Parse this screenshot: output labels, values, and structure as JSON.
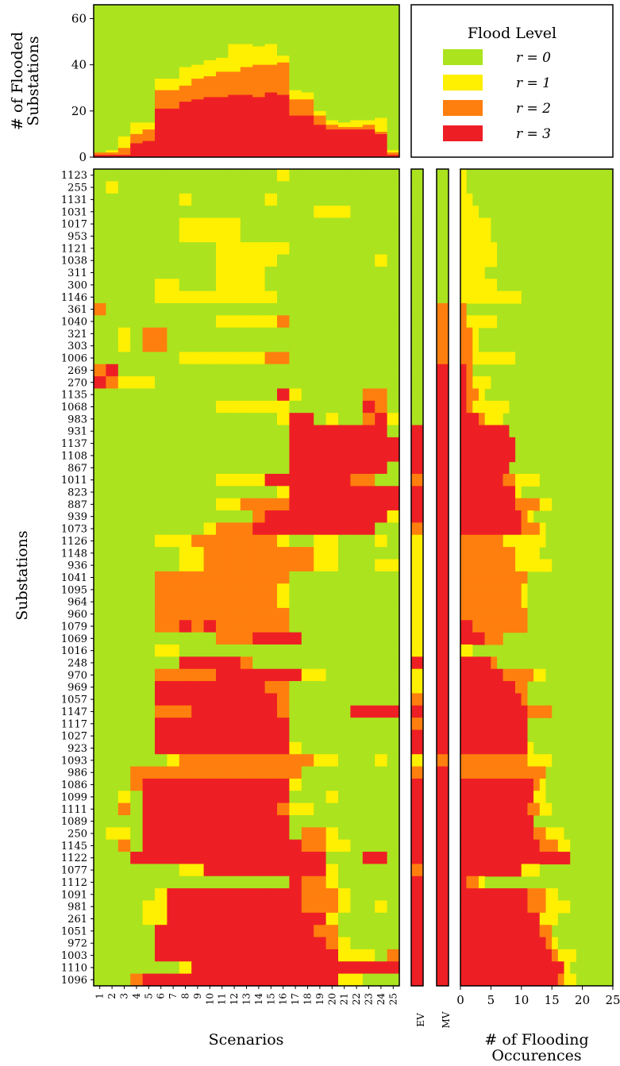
{
  "colors": {
    "r0": "#abe31f",
    "r1": "#ffef00",
    "r2": "#ff7f0e",
    "r3": "#ee1f24",
    "axis": "#000000",
    "bg": "#ffffff"
  },
  "chart_data": {
    "type": "heatmap",
    "title": "",
    "legend": {
      "title": "Flood Level",
      "entries": [
        "r = 0",
        "r = 1",
        "r = 2",
        "r = 3"
      ],
      "placement": "top-right"
    },
    "top_panel": {
      "type": "area",
      "ylabel": "# of Flooded Substations",
      "ylim": [
        0,
        66
      ],
      "yticks": [
        0,
        20,
        40,
        60
      ],
      "x": [
        1,
        2,
        3,
        4,
        5,
        6,
        7,
        8,
        9,
        10,
        11,
        12,
        13,
        14,
        15,
        16,
        17,
        18,
        19,
        20,
        21,
        22,
        23,
        24,
        25
      ],
      "series": [
        {
          "level": "r3",
          "values": [
            1,
            1,
            1,
            6,
            7,
            21,
            21,
            24,
            25,
            26,
            26,
            27,
            27,
            26,
            28,
            27,
            18,
            18,
            14,
            12,
            12,
            12,
            12,
            10,
            1
          ]
        },
        {
          "level": "r2",
          "values": [
            1,
            1,
            3,
            4,
            5,
            8,
            8,
            7,
            9,
            9,
            11,
            10,
            12,
            14,
            12,
            14,
            7,
            7,
            4,
            2,
            1,
            1,
            2,
            1,
            1
          ]
        },
        {
          "level": "r1",
          "values": [
            0,
            1,
            5,
            5,
            3,
            5,
            5,
            8,
            6,
            7,
            6,
            12,
            10,
            8,
            9,
            3,
            4,
            3,
            2,
            2,
            2,
            3,
            2,
            6,
            1
          ]
        }
      ]
    },
    "main": {
      "xlabel": "Scenarios",
      "ylabel": "Substations",
      "x": [
        1,
        2,
        3,
        4,
        5,
        6,
        7,
        8,
        9,
        10,
        11,
        12,
        13,
        14,
        15,
        16,
        17,
        18,
        19,
        20,
        21,
        22,
        23,
        24,
        25
      ],
      "rows": [
        "1123",
        "255",
        "1131",
        "1031",
        "1017",
        "953",
        "1121",
        "1038",
        "311",
        "300",
        "1146",
        "361",
        "1040",
        "321",
        "303",
        "1006",
        "269",
        "270",
        "1135",
        "1068",
        "983",
        "931",
        "1137",
        "1108",
        "867",
        "1011",
        "823",
        "887",
        "939",
        "1073",
        "1126",
        "1148",
        "936",
        "1041",
        "1095",
        "964",
        "960",
        "1079",
        "1069",
        "1016",
        "248",
        "970",
        "969",
        "1057",
        "1147",
        "1117",
        "1027",
        "923",
        "1093",
        "986",
        "1086",
        "1099",
        "1111",
        "1089",
        "250",
        "1145",
        "1122",
        "1077",
        "1112",
        "1091",
        "981",
        "261",
        "1051",
        "972",
        "1003",
        "1110",
        "1096"
      ],
      "grid": [
        "0000000000000001000000000",
        "0100000000000000000000000",
        "0000000100000010000000000",
        "0000000000000000001110000",
        "0000000111110000000000000",
        "0000000111110000000000000",
        "0000000000111111000000000",
        "0000000000111110000000010",
        "0000000000111100000000000",
        "0000011000111100000000000",
        "0000011111111110000000000",
        "2000000000000000000000000",
        "0000000000111112000000000",
        "0010220000000000000000000",
        "0010220000000000000000000",
        "0000000111111122000000000",
        "2300000000000000000000000",
        "3211100000000000000000000",
        "0000000000000003100000220",
        "0000000000111111000000320",
        "0000000000000001330100231",
        "0000000000000000333333330",
        "0000000000000000333333333",
        "0000000000000000333333333",
        "0000000000000000333333330",
        "0000000000111133333332200",
        "0000000000000001333333333",
        "0000000000112222333333333",
        "0000000000000233333333331",
        "0000000001222333333333300",
        "0000011122222221001100010",
        "0000000112222222221100000",
        "0000000112222222221100011",
        "0000022222222222000000000",
        "0000022222222221000000000",
        "0000022222222221000000000",
        "0000022222222222000000000",
        "0000022323222222000000000",
        "0000000000222333300000000",
        "0000011000000000000000000",
        "0000000333332000000000000",
        "0000022222333333311000000",
        "0000033333333322000000000",
        "0000033333333332000000000",
        "0000022233333332000003333",
        "0000033333333333000000000",
        "0000033333333333000000000",
        "0000033333333333100000000",
        "0000001222222222221100010",
        "0002222222222222200000000",
        "0002333333333333100000000",
        "0010333333333333000100000",
        "0020333333333332110000000",
        "0000333333333333000000000",
        "0110333333333333022100000",
        "0020333333333333322110000",
        "0003333333333333333000330",
        "0000000113333333333100000",
        "0000000000000000322100000",
        "0000013333333333322210000",
        "0000113333333333322210010",
        "0000113333333333333100000",
        "0000033333333333332200000",
        "0000033333333333333210000",
        "0000033333333333333311102",
        "0000000133333333333333333",
        "0002333333333333333311000"
      ],
      "ev": [
        0,
        0,
        0,
        0,
        0,
        0,
        0,
        0,
        0,
        0,
        0,
        0,
        0,
        0,
        0,
        0,
        0,
        0,
        0,
        0,
        0,
        3,
        3,
        3,
        3,
        2,
        3,
        3,
        3,
        2,
        1,
        1,
        1,
        1,
        1,
        1,
        1,
        1,
        1,
        1,
        3,
        1,
        1,
        2,
        3,
        2,
        3,
        3,
        1,
        2,
        3,
        3,
        3,
        3,
        3,
        3,
        3,
        2,
        3,
        3,
        3,
        3,
        3,
        3,
        3,
        3,
        3
      ],
      "mv": [
        0,
        0,
        0,
        0,
        0,
        0,
        0,
        0,
        0,
        0,
        0,
        2,
        2,
        2,
        2,
        2,
        3,
        3,
        3,
        3,
        3,
        3,
        3,
        3,
        3,
        3,
        3,
        3,
        3,
        3,
        3,
        3,
        3,
        3,
        3,
        3,
        3,
        3,
        3,
        3,
        3,
        3,
        3,
        3,
        3,
        3,
        3,
        3,
        2,
        3,
        3,
        3,
        3,
        3,
        3,
        3,
        3,
        3,
        3,
        3,
        3,
        3,
        3,
        3,
        3,
        3,
        3
      ],
      "ev_label": "EV",
      "mv_label": "MV"
    },
    "side_panel": {
      "type": "bar",
      "xlabel": "# of Flooding Occurences",
      "xlim": [
        0,
        25
      ],
      "xticks": [
        0,
        5,
        10,
        15,
        20,
        25
      ]
    }
  }
}
